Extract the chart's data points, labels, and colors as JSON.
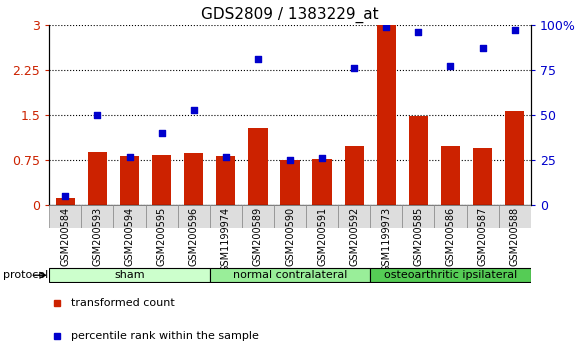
{
  "title": "GDS2809 / 1383229_at",
  "categories": [
    "GSM200584",
    "GSM200593",
    "GSM200594",
    "GSM200595",
    "GSM200596",
    "GSM1199974",
    "GSM200589",
    "GSM200590",
    "GSM200591",
    "GSM200592",
    "GSM1199973",
    "GSM200585",
    "GSM200586",
    "GSM200587",
    "GSM200588"
  ],
  "bar_values": [
    0.12,
    0.88,
    0.82,
    0.83,
    0.87,
    0.82,
    1.28,
    0.76,
    0.77,
    0.98,
    3.0,
    1.48,
    0.98,
    0.95,
    1.56
  ],
  "dot_values_right": [
    5,
    50,
    27,
    40,
    53,
    27,
    81,
    25,
    26,
    76,
    99,
    96,
    77,
    87,
    97
  ],
  "groups": [
    {
      "label": "sham",
      "start": 0,
      "end": 5,
      "color": "#ccffcc"
    },
    {
      "label": "normal contralateral",
      "start": 5,
      "end": 10,
      "color": "#99ee99"
    },
    {
      "label": "osteoarthritic ipsilateral",
      "start": 10,
      "end": 15,
      "color": "#55cc55"
    }
  ],
  "bar_color": "#cc2200",
  "dot_color": "#0000cc",
  "left_yticks": [
    0,
    0.75,
    1.5,
    2.25,
    3.0
  ],
  "left_ylim": [
    0,
    3.0
  ],
  "right_ylim": [
    0,
    100
  ],
  "right_yticks": [
    0,
    25,
    50,
    75,
    100
  ],
  "right_yticklabels": [
    "0",
    "25",
    "50",
    "75",
    "100%"
  ],
  "background_color": "#ffffff",
  "title_fontsize": 11,
  "axis_label_color_left": "#cc2200",
  "axis_label_color_right": "#0000cc",
  "tick_label_color": "#cc2200",
  "xtick_bg_color": "#dddddd",
  "xtick_border_color": "#888888"
}
